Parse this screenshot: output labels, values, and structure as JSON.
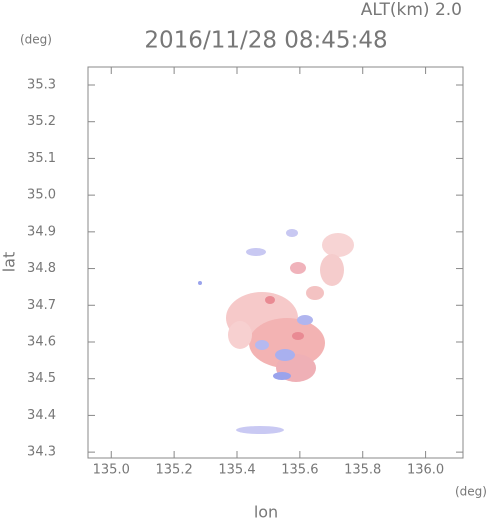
{
  "chart_data": {
    "type": "map",
    "title": "2016/11/28 08:45:48",
    "subtitle": "ALT(km)  2.0",
    "y_unit": "(deg)",
    "x_unit": "(deg)",
    "xlabel": "lon",
    "ylabel": "lat",
    "xlim": [
      134.926,
      136.119
    ],
    "ylim": [
      34.284,
      35.349
    ],
    "xticks": [
      {
        "value": 135.0,
        "label": "135.0"
      },
      135.2,
      135.4,
      135.6,
      135.8,
      {
        "value": 136.0,
        "label": "136.0"
      }
    ],
    "yticks": [
      34.3,
      34.4,
      34.5,
      34.6,
      34.7,
      34.8,
      34.9,
      {
        "value": 35.0,
        "label": "35.0"
      },
      35.1,
      35.2,
      35.3
    ]
  }
}
